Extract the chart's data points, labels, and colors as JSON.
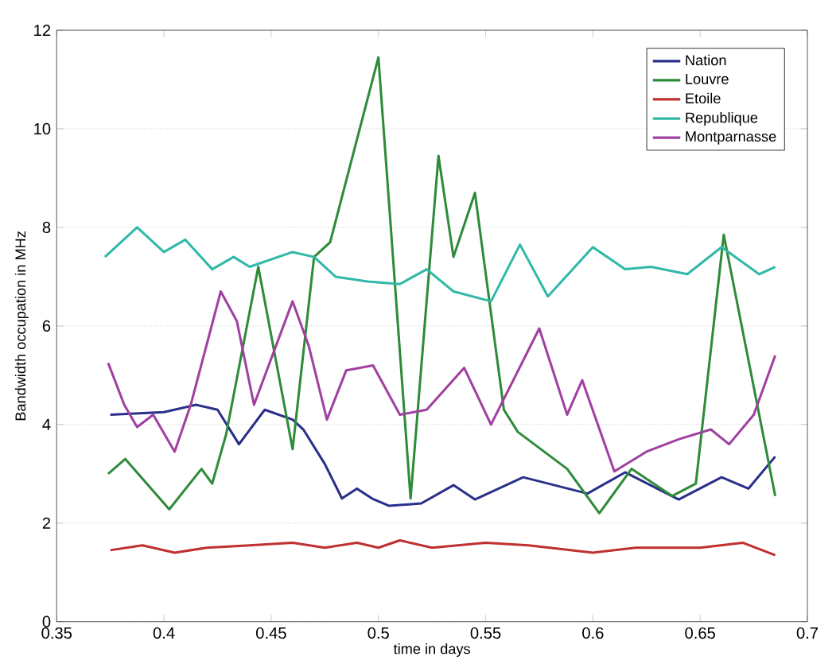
{
  "chart_data": {
    "type": "line",
    "xlabel": "time in days",
    "ylabel": "Bandwidth occupation in MHz",
    "xlim": [
      0.35,
      0.7
    ],
    "ylim": [
      0,
      12
    ],
    "xticks": [
      0.35,
      0.4,
      0.45,
      0.5,
      0.55,
      0.6,
      0.65,
      0.7
    ],
    "yticks": [
      0,
      2,
      4,
      6,
      8,
      10,
      12
    ],
    "grid": "y",
    "legend": "top right",
    "line_style": "solid",
    "series": [
      {
        "name": "Nation",
        "color": "#2a2f8a",
        "x": [
          0.375,
          0.4,
          0.415,
          0.425,
          0.435,
          0.447,
          0.46,
          0.465,
          0.475,
          0.483,
          0.49,
          0.497,
          0.505,
          0.52,
          0.535,
          0.545,
          0.5675,
          0.5975,
          0.615,
          0.64,
          0.66,
          0.6725,
          0.685
        ],
        "values": [
          4.2,
          4.25,
          4.4,
          4.3,
          3.6,
          4.3,
          4.1,
          3.9,
          3.2,
          2.5,
          2.7,
          2.5,
          2.35,
          2.4,
          2.77,
          2.48,
          2.93,
          2.6,
          3.03,
          2.48,
          2.93,
          2.7,
          3.35
        ]
      },
      {
        "name": "Louvre",
        "color": "#2e8b3a",
        "x": [
          0.374,
          0.382,
          0.4025,
          0.4175,
          0.4225,
          0.429,
          0.444,
          0.46,
          0.47,
          0.4775,
          0.5,
          0.515,
          0.528,
          0.535,
          0.545,
          0.5585,
          0.565,
          0.588,
          0.603,
          0.618,
          0.637,
          0.648,
          0.661,
          0.685
        ],
        "values": [
          3.0,
          3.3,
          2.28,
          3.1,
          2.8,
          3.8,
          7.2,
          3.5,
          7.4,
          7.7,
          11.45,
          2.5,
          9.45,
          7.4,
          8.7,
          4.3,
          3.85,
          3.1,
          2.2,
          3.1,
          2.55,
          2.8,
          7.85,
          2.55
        ]
      },
      {
        "name": "Etoile",
        "color": "#c03030",
        "x": [
          0.375,
          0.39,
          0.405,
          0.42,
          0.44,
          0.46,
          0.475,
          0.49,
          0.5,
          0.51,
          0.525,
          0.55,
          0.57,
          0.6,
          0.62,
          0.65,
          0.67,
          0.685
        ],
        "values": [
          1.45,
          1.55,
          1.4,
          1.5,
          1.55,
          1.6,
          1.5,
          1.6,
          1.5,
          1.65,
          1.5,
          1.6,
          1.55,
          1.4,
          1.5,
          1.5,
          1.6,
          1.35
        ]
      },
      {
        "name": "Republique",
        "color": "#30b8a8",
        "x": [
          0.3725,
          0.3875,
          0.4,
          0.41,
          0.4225,
          0.4325,
          0.44,
          0.46,
          0.47,
          0.48,
          0.495,
          0.51,
          0.5225,
          0.535,
          0.5525,
          0.566,
          0.579,
          0.6,
          0.615,
          0.627,
          0.644,
          0.66,
          0.6775,
          0.685
        ],
        "values": [
          7.4,
          8.0,
          7.5,
          7.75,
          7.15,
          7.4,
          7.2,
          7.5,
          7.4,
          7.0,
          6.9,
          6.85,
          7.15,
          6.7,
          6.5,
          7.65,
          6.6,
          7.6,
          7.15,
          7.2,
          7.05,
          7.6,
          7.05,
          7.2
        ]
      },
      {
        "name": "Montparnasse",
        "color": "#a040a0",
        "x": [
          0.374,
          0.3815,
          0.3875,
          0.395,
          0.405,
          0.4125,
          0.4265,
          0.434,
          0.442,
          0.46,
          0.4675,
          0.476,
          0.485,
          0.4975,
          0.51,
          0.5225,
          0.54,
          0.5525,
          0.575,
          0.588,
          0.595,
          0.61,
          0.625,
          0.64,
          0.655,
          0.6635,
          0.675,
          0.685
        ],
        "values": [
          5.25,
          4.4,
          3.95,
          4.2,
          3.45,
          4.4,
          6.7,
          6.1,
          4.4,
          6.5,
          5.6,
          4.1,
          5.1,
          5.2,
          4.2,
          4.3,
          5.15,
          4.0,
          5.95,
          4.2,
          4.9,
          3.05,
          3.45,
          3.7,
          3.9,
          3.6,
          4.2,
          5.4
        ]
      }
    ]
  }
}
